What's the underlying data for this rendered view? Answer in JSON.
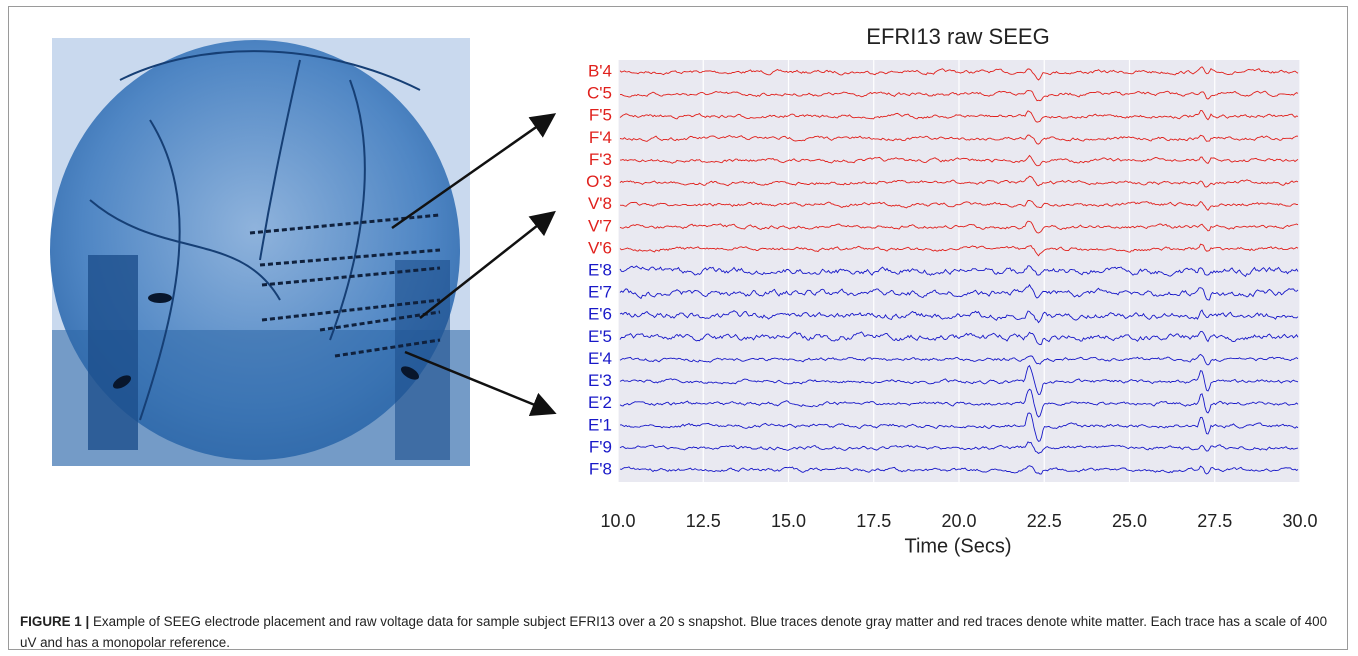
{
  "figure": {
    "chart": {
      "title": "EFRI13 raw SEEG",
      "xlabel": "Time (Secs)",
      "xlim": [
        10,
        30
      ],
      "xticks": [
        {
          "value": 10,
          "label": "10.0"
        },
        {
          "value": 12.5,
          "label": "12.5"
        },
        {
          "value": 15,
          "label": "15.0"
        },
        {
          "value": 17.5,
          "label": "17.5"
        },
        {
          "value": 20,
          "label": "20.0"
        },
        {
          "value": 22.5,
          "label": "22.5"
        },
        {
          "value": 25,
          "label": "25.0"
        },
        {
          "value": 27.5,
          "label": "27.5"
        },
        {
          "value": 30,
          "label": "30.0"
        }
      ],
      "channels": [
        {
          "name": "B'4",
          "color": "#e0201c"
        },
        {
          "name": "C'5",
          "color": "#e0201c"
        },
        {
          "name": "F'5",
          "color": "#e0201c"
        },
        {
          "name": "F'4",
          "color": "#e0201c"
        },
        {
          "name": "F'3",
          "color": "#e0201c"
        },
        {
          "name": "O'3",
          "color": "#e0201c"
        },
        {
          "name": "V'8",
          "color": "#e0201c"
        },
        {
          "name": "V'7",
          "color": "#e0201c"
        },
        {
          "name": "V'6",
          "color": "#e0201c"
        },
        {
          "name": "E'8",
          "color": "#1818c8"
        },
        {
          "name": "E'7",
          "color": "#1818c8"
        },
        {
          "name": "E'6",
          "color": "#1818c8"
        },
        {
          "name": "E'5",
          "color": "#1818c8"
        },
        {
          "name": "E'4",
          "color": "#1818c8"
        },
        {
          "name": "E'3",
          "color": "#1818c8"
        },
        {
          "name": "E'2",
          "color": "#1818c8"
        },
        {
          "name": "E'1",
          "color": "#1818c8"
        },
        {
          "name": "F'9",
          "color": "#1818c8"
        },
        {
          "name": "F'8",
          "color": "#1818c8"
        }
      ]
    },
    "caption": {
      "label": "FIGURE 1 |",
      "text": "Example of SEEG electrode placement and raw voltage data for sample subject EFRI13 over a 20 s snapshot. Blue traces denote gray matter and red traces denote white matter. Each trace has a scale of 400 uV and has a monopolar reference."
    }
  }
}
